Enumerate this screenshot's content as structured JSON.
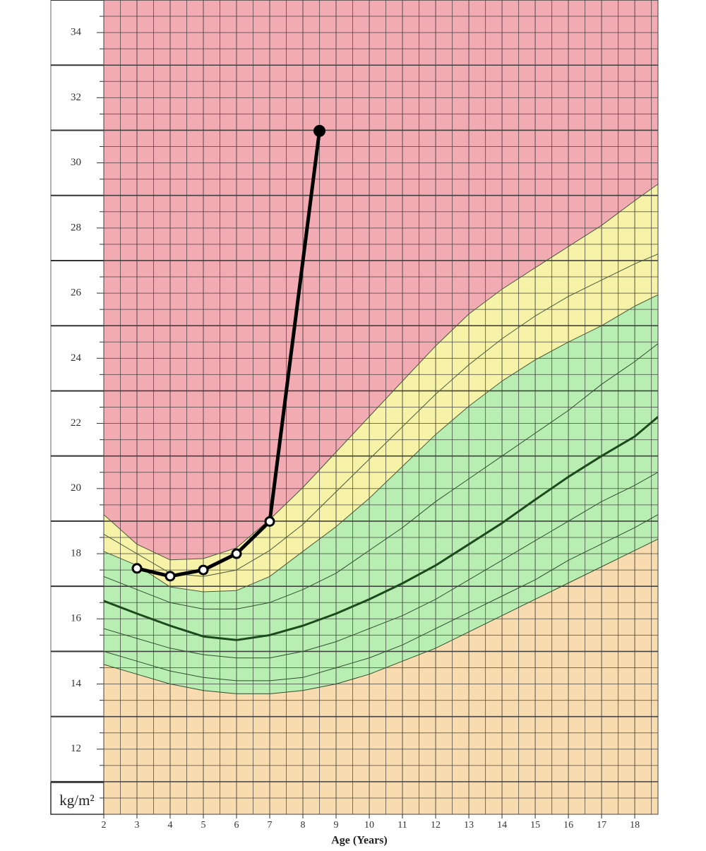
{
  "chart_data": {
    "type": "line",
    "xlabel": "Age (Years)",
    "ylabel": "kg/m²",
    "xlim": [
      2,
      18.7
    ],
    "ylim": [
      10,
      35
    ],
    "xticks": [
      2,
      3,
      4,
      5,
      6,
      7,
      8,
      9,
      10,
      11,
      12,
      13,
      14,
      15,
      16,
      17,
      18
    ],
    "yticks": [
      12,
      14,
      16,
      18,
      20,
      22,
      24,
      26,
      28,
      30,
      32,
      34
    ],
    "grid": true,
    "grid_step": [
      0.5,
      0.5
    ],
    "grid_color": "#3a3a3a",
    "background_color": "#f2aab3",
    "x": [
      2,
      3,
      4,
      5,
      6,
      7,
      8,
      9,
      10,
      11,
      12,
      13,
      14,
      15,
      16,
      17,
      18,
      18.7
    ],
    "series": [
      {
        "color": "#4a5a3a",
        "width": 1,
        "fill": "#f6f2a8",
        "values": [
          19.2,
          18.29,
          17.81,
          17.85,
          18.18,
          19.05,
          20.03,
          21.12,
          22.21,
          23.3,
          24.38,
          25.36,
          26.12,
          26.78,
          27.43,
          28.08,
          28.84,
          29.35
        ]
      },
      {
        "color": "#4a5a3a",
        "width": 1,
        "fill": "#b9eeb3",
        "values": [
          18.07,
          17.64,
          16.98,
          16.83,
          16.87,
          17.3,
          18.07,
          18.83,
          19.7,
          20.68,
          21.66,
          22.53,
          23.3,
          23.95,
          24.5,
          25.0,
          25.6,
          25.95
        ]
      },
      {
        "color": "#2f4f2f",
        "width": 1,
        "fill": "#f8dcb0",
        "values": [
          14.6,
          14.3,
          14.0,
          13.8,
          13.7,
          13.7,
          13.8,
          14.0,
          14.3,
          14.7,
          15.1,
          15.6,
          16.1,
          16.6,
          17.1,
          17.6,
          18.1,
          18.45
        ]
      },
      {
        "color": "#4a5a3a",
        "width": 1,
        "values": [
          18.6,
          18.0,
          17.4,
          17.3,
          17.5,
          18.1,
          18.9,
          19.9,
          20.9,
          21.9,
          22.9,
          23.8,
          24.6,
          25.3,
          25.9,
          26.4,
          26.9,
          27.2
        ]
      },
      {
        "color": "#2f4f2f",
        "width": 1,
        "values": [
          17.3,
          16.9,
          16.5,
          16.3,
          16.3,
          16.5,
          16.9,
          17.4,
          18.1,
          18.8,
          19.6,
          20.3,
          21.0,
          21.7,
          22.4,
          23.2,
          23.9,
          24.45
        ]
      },
      {
        "color": "#1d4a1d",
        "width": 3,
        "values": [
          16.55,
          16.16,
          15.79,
          15.46,
          15.35,
          15.5,
          15.79,
          16.16,
          16.6,
          17.09,
          17.64,
          18.29,
          18.94,
          19.66,
          20.36,
          21.0,
          21.6,
          22.2
        ]
      },
      {
        "color": "#2f4f2f",
        "width": 1,
        "values": [
          15.7,
          15.4,
          15.1,
          14.9,
          14.8,
          14.8,
          15.0,
          15.3,
          15.7,
          16.1,
          16.6,
          17.2,
          17.8,
          18.4,
          19.0,
          19.6,
          20.1,
          20.5
        ]
      },
      {
        "color": "#2f4f2f",
        "width": 1,
        "values": [
          15.0,
          14.7,
          14.4,
          14.2,
          14.1,
          14.1,
          14.2,
          14.5,
          14.8,
          15.2,
          15.7,
          16.2,
          16.7,
          17.2,
          17.8,
          18.3,
          18.8,
          19.2
        ]
      },
      {
        "color": "#000000",
        "width": 5,
        "markers": true,
        "x": [
          3,
          4,
          5,
          6,
          7,
          8.5
        ],
        "values": [
          17.55,
          17.31,
          17.5,
          18.0,
          18.99,
          30.98
        ]
      }
    ]
  }
}
